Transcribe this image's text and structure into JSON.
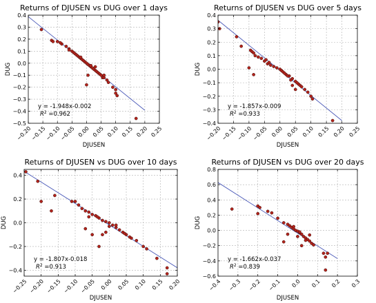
{
  "chart_data": [
    {
      "type": "scatter",
      "title": "Returns of DJUSEN vs DUG over 1 days",
      "xlabel": "DJUSEN",
      "ylabel": "DUG",
      "xlim": [
        -0.2,
        0.25
      ],
      "ylim": [
        -0.5,
        0.4
      ],
      "xticks": [
        -0.2,
        -0.15,
        -0.1,
        -0.05,
        0.0,
        0.05,
        0.1,
        0.15,
        0.2,
        0.25
      ],
      "xtick_labels": [
        "−0.20",
        "−0.15",
        "−0.10",
        "−0.05",
        "0.00",
        "0.05",
        "0.10",
        "0.15",
        "0.20",
        "0.25"
      ],
      "yticks": [
        -0.5,
        -0.4,
        -0.3,
        -0.2,
        -0.1,
        0.0,
        0.1,
        0.2,
        0.3,
        0.4
      ],
      "ytick_labels": [
        "−0.5",
        "−0.4",
        "−0.3",
        "−0.2",
        "−0.1",
        "0.0",
        "0.1",
        "0.2",
        "0.3",
        "0.4"
      ],
      "fit": {
        "slope": -1.948,
        "intercept": -0.002,
        "x_range": [
          -0.2,
          0.2
        ]
      },
      "equation": "y = -1.948x-0.002",
      "r2_label": "R",
      "r2_value": "=0.962",
      "grid": true,
      "points": [
        [
          -0.155,
          0.28
        ],
        [
          -0.12,
          0.19
        ],
        [
          -0.115,
          0.18
        ],
        [
          -0.1,
          0.18
        ],
        [
          -0.085,
          0.16
        ],
        [
          -0.07,
          0.14
        ],
        [
          -0.06,
          0.12
        ],
        [
          -0.05,
          0.1
        ],
        [
          -0.045,
          0.09
        ],
        [
          -0.04,
          0.08
        ],
        [
          -0.035,
          0.07
        ],
        [
          -0.03,
          0.06
        ],
        [
          -0.025,
          0.05
        ],
        [
          -0.02,
          0.04
        ],
        [
          -0.015,
          0.03
        ],
        [
          -0.01,
          0.02
        ],
        [
          -0.005,
          0.01
        ],
        [
          0.0,
          0.0
        ],
        [
          0.005,
          -0.01
        ],
        [
          0.01,
          -0.02
        ],
        [
          0.015,
          -0.03
        ],
        [
          0.02,
          -0.04
        ],
        [
          0.025,
          -0.05
        ],
        [
          0.03,
          -0.06
        ],
        [
          0.035,
          -0.07
        ],
        [
          0.04,
          -0.08
        ],
        [
          0.045,
          -0.09
        ],
        [
          0.05,
          -0.1
        ],
        [
          0.055,
          -0.12
        ],
        [
          0.06,
          -0.12
        ],
        [
          0.07,
          -0.14
        ],
        [
          0.075,
          -0.16
        ],
        [
          0.09,
          -0.2
        ],
        [
          0.1,
          -0.22
        ],
        [
          0.1,
          -0.25
        ],
        [
          0.105,
          -0.27
        ],
        [
          0.17,
          -0.46
        ],
        [
          0.0,
          -0.18
        ],
        [
          0.005,
          -0.1
        ],
        [
          -0.06,
          0.11
        ],
        [
          -0.09,
          0.17
        ],
        [
          0.03,
          -0.03
        ],
        [
          0.015,
          -0.02
        ],
        [
          -0.02,
          0.05
        ],
        [
          0.06,
          -0.1
        ]
      ]
    },
    {
      "type": "scatter",
      "title": "Returns of DJUSEN vs DUG over 5 days",
      "xlabel": "DJUSEN",
      "ylabel": "DUG",
      "xlim": [
        -0.2,
        0.25
      ],
      "ylim": [
        -0.4,
        0.4
      ],
      "xticks": [
        -0.2,
        -0.15,
        -0.1,
        -0.05,
        0.0,
        0.05,
        0.1,
        0.15,
        0.2,
        0.25
      ],
      "xtick_labels": [
        "−0.20",
        "−0.15",
        "−0.10",
        "−0.05",
        "0.00",
        "0.05",
        "0.10",
        "0.15",
        "0.20",
        "0.25"
      ],
      "yticks": [
        -0.4,
        -0.3,
        -0.2,
        -0.1,
        0.0,
        0.1,
        0.2,
        0.3,
        0.4
      ],
      "ytick_labels": [
        "−0.4",
        "−0.3",
        "−0.2",
        "−0.1",
        "0.0",
        "0.1",
        "0.2",
        "0.3",
        "0.4"
      ],
      "fit": {
        "slope": -1.857,
        "intercept": -0.009,
        "x_range": [
          -0.2,
          0.2
        ]
      },
      "equation": "y = -1.857x-0.009",
      "r2_label": "R",
      "r2_value": "=0.933",
      "grid": true,
      "points": [
        [
          -0.2,
          0.35
        ],
        [
          -0.195,
          0.3
        ],
        [
          -0.14,
          0.24
        ],
        [
          -0.125,
          0.17
        ],
        [
          -0.095,
          0.14
        ],
        [
          -0.09,
          0.13
        ],
        [
          -0.085,
          0.12
        ],
        [
          -0.08,
          0.1
        ],
        [
          -0.07,
          0.09
        ],
        [
          -0.06,
          0.08
        ],
        [
          -0.05,
          0.06
        ],
        [
          -0.04,
          0.04
        ],
        [
          -0.03,
          0.03
        ],
        [
          -0.02,
          0.02
        ],
        [
          -0.01,
          0.01
        ],
        [
          0.0,
          0.0
        ],
        [
          0.005,
          -0.01
        ],
        [
          0.01,
          -0.02
        ],
        [
          0.02,
          -0.04
        ],
        [
          0.03,
          -0.05
        ],
        [
          0.04,
          -0.07
        ],
        [
          0.05,
          -0.09
        ],
        [
          0.06,
          -0.11
        ],
        [
          0.065,
          -0.12
        ],
        [
          0.07,
          -0.13
        ],
        [
          0.08,
          -0.15
        ],
        [
          0.09,
          -0.17
        ],
        [
          0.1,
          -0.2
        ],
        [
          0.105,
          -0.22
        ],
        [
          0.17,
          -0.38
        ],
        [
          -0.1,
          0.01
        ],
        [
          -0.085,
          -0.04
        ],
        [
          0.05,
          -0.15
        ],
        [
          0.04,
          -0.12
        ],
        [
          -0.035,
          0.05
        ],
        [
          -0.045,
          0.07
        ],
        [
          0.015,
          -0.03
        ],
        [
          0.025,
          -0.05
        ],
        [
          0.035,
          -0.08
        ],
        [
          0.055,
          -0.1
        ]
      ]
    },
    {
      "type": "scatter",
      "title": "Returns of DJUSEN vs DUG over 10 days",
      "xlabel": "DJUSEN",
      "ylabel": "DUG",
      "xlim": [
        -0.25,
        0.2
      ],
      "ylim": [
        -0.45,
        0.45
      ],
      "xticks": [
        -0.25,
        -0.2,
        -0.15,
        -0.1,
        -0.05,
        0.0,
        0.05,
        0.1,
        0.15,
        0.2
      ],
      "xtick_labels": [
        "−0.25",
        "−0.20",
        "−0.15",
        "−0.10",
        "−0.05",
        "0.00",
        "0.05",
        "0.10",
        "0.15",
        "0.20"
      ],
      "yticks": [
        -0.4,
        -0.2,
        0.0,
        0.2,
        0.4
      ],
      "ytick_labels": [
        "−0.4",
        "−0.2",
        "0.0",
        "0.2",
        "0.4"
      ],
      "fit": {
        "slope": -1.807,
        "intercept": -0.018,
        "x_range": [
          -0.25,
          0.2
        ]
      },
      "equation": "y = -1.807x-0.018",
      "r2_label": "R",
      "r2_value": "=0.913",
      "grid": true,
      "points": [
        [
          -0.245,
          0.43
        ],
        [
          -0.21,
          0.35
        ],
        [
          -0.2,
          0.18
        ],
        [
          -0.17,
          0.1
        ],
        [
          -0.16,
          0.23
        ],
        [
          -0.11,
          0.18
        ],
        [
          -0.1,
          0.18
        ],
        [
          -0.09,
          0.15
        ],
        [
          -0.08,
          0.12
        ],
        [
          -0.07,
          0.1
        ],
        [
          -0.06,
          0.09
        ],
        [
          -0.05,
          0.07
        ],
        [
          -0.04,
          0.06
        ],
        [
          -0.03,
          0.04
        ],
        [
          -0.02,
          0.02
        ],
        [
          -0.01,
          0.01
        ],
        [
          0.0,
          0.0
        ],
        [
          0.01,
          -0.02
        ],
        [
          0.02,
          -0.04
        ],
        [
          0.03,
          -0.06
        ],
        [
          0.04,
          -0.08
        ],
        [
          0.05,
          -0.1
        ],
        [
          0.06,
          -0.12
        ],
        [
          0.08,
          -0.15
        ],
        [
          0.1,
          -0.2
        ],
        [
          0.11,
          -0.22
        ],
        [
          0.14,
          -0.3
        ],
        [
          0.17,
          -0.38
        ],
        [
          0.17,
          -0.43
        ],
        [
          -0.07,
          -0.05
        ],
        [
          -0.05,
          -0.1
        ],
        [
          -0.03,
          -0.2
        ],
        [
          -0.02,
          -0.1
        ],
        [
          -0.01,
          -0.08
        ],
        [
          -0.06,
          0.05
        ],
        [
          0.0,
          -0.03
        ],
        [
          0.02,
          -0.02
        ],
        [
          0.045,
          -0.09
        ],
        [
          -0.035,
          0.05
        ],
        [
          0.065,
          -0.13
        ]
      ]
    },
    {
      "type": "scatter",
      "title": "Returns of DJUSEN vs DUG over 20 days",
      "xlabel": "DJUSEN",
      "ylabel": "DUG",
      "xlim": [
        -0.4,
        0.3
      ],
      "ylim": [
        -0.6,
        0.8
      ],
      "xticks": [
        -0.4,
        -0.3,
        -0.2,
        -0.1,
        0.0,
        0.1,
        0.2,
        0.3
      ],
      "xtick_labels": [
        "−0.4",
        "−0.3",
        "−0.2",
        "−0.1",
        "0.0",
        "0.1",
        "0.2",
        "0.3"
      ],
      "yticks": [
        -0.6,
        -0.4,
        -0.2,
        0.0,
        0.2,
        0.4,
        0.6,
        0.8
      ],
      "ytick_labels": [
        "−0.6",
        "−0.4",
        "−0.2",
        "0.0",
        "0.2",
        "0.4",
        "0.6",
        "0.8"
      ],
      "fit": {
        "slope": -1.662,
        "intercept": -0.037,
        "x_range": [
          -0.4,
          0.2
        ]
      },
      "equation": "y = -1.662x-0.037",
      "r2_label": "R",
      "r2_value": "=0.839",
      "grid": true,
      "points": [
        [
          -0.33,
          0.28
        ],
        [
          -0.2,
          0.32
        ],
        [
          -0.19,
          0.3
        ],
        [
          -0.2,
          0.22
        ],
        [
          -0.15,
          0.25
        ],
        [
          -0.13,
          0.23
        ],
        [
          -0.1,
          0.16
        ],
        [
          -0.07,
          0.1
        ],
        [
          -0.05,
          0.08
        ],
        [
          -0.04,
          0.06
        ],
        [
          -0.03,
          0.04
        ],
        [
          -0.02,
          0.02
        ],
        [
          -0.01,
          0.0
        ],
        [
          0.0,
          -0.01
        ],
        [
          0.01,
          -0.03
        ],
        [
          0.02,
          -0.05
        ],
        [
          0.03,
          -0.08
        ],
        [
          0.04,
          -0.1
        ],
        [
          0.05,
          -0.12
        ],
        [
          0.06,
          -0.14
        ],
        [
          0.07,
          -0.17
        ],
        [
          0.08,
          -0.19
        ],
        [
          0.13,
          -0.3
        ],
        [
          0.14,
          -0.35
        ],
        [
          0.15,
          -0.3
        ],
        [
          0.14,
          -0.52
        ],
        [
          -0.07,
          -0.15
        ],
        [
          -0.05,
          -0.05
        ],
        [
          0.02,
          -0.2
        ],
        [
          0.06,
          -0.06
        ],
        [
          -0.02,
          0.05
        ],
        [
          0.0,
          -0.08
        ],
        [
          0.04,
          -0.13
        ],
        [
          0.01,
          -0.02
        ]
      ]
    }
  ]
}
